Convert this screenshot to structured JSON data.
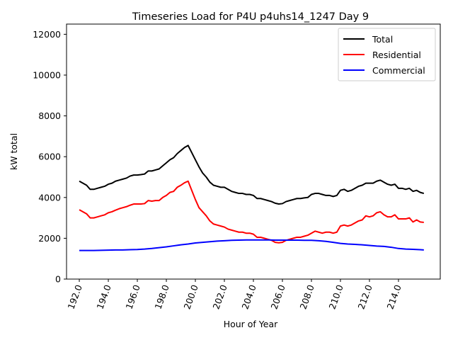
{
  "chart_data": {
    "type": "line",
    "title": "Timeseries Load for P4U p4uhs14_1247  Day 9",
    "xlabel": "Hour of Year",
    "ylabel": "kW total",
    "xlim": [
      191.12,
      216.88
    ],
    "ylim": [
      0,
      12500
    ],
    "x_ticks": [
      192.0,
      194.0,
      196.0,
      198.0,
      200.0,
      202.0,
      204.0,
      206.0,
      208.0,
      210.0,
      212.0,
      214.0
    ],
    "x_tick_labels": [
      "192.0",
      "194.0",
      "196.0",
      "198.0",
      "200.0",
      "202.0",
      "204.0",
      "206.0",
      "208.0",
      "210.0",
      "212.0",
      "214.0"
    ],
    "y_ticks": [
      0,
      2000,
      4000,
      6000,
      8000,
      10000,
      12000
    ],
    "y_tick_labels": [
      "0",
      "2000",
      "4000",
      "6000",
      "8000",
      "10000",
      "12000"
    ],
    "x_tick_rotation": 70,
    "grid": false,
    "legend": "top-right",
    "series": [
      {
        "name": "Total",
        "color": "#000000",
        "x": [
          192.0,
          192.25,
          192.5,
          192.75,
          193.0,
          193.25,
          193.5,
          193.75,
          194.0,
          194.25,
          194.5,
          194.75,
          195.0,
          195.25,
          195.5,
          195.75,
          196.0,
          196.25,
          196.5,
          196.75,
          197.0,
          197.25,
          197.5,
          197.75,
          198.0,
          198.25,
          198.5,
          198.75,
          199.0,
          199.25,
          199.5,
          199.75,
          200.0,
          200.25,
          200.5,
          200.75,
          201.0,
          201.25,
          201.5,
          201.75,
          202.0,
          202.25,
          202.5,
          202.75,
          203.0,
          203.25,
          203.5,
          203.75,
          204.0,
          204.25,
          204.5,
          204.75,
          205.0,
          205.25,
          205.5,
          205.75,
          206.0,
          206.25,
          206.5,
          206.75,
          207.0,
          207.25,
          207.5,
          207.75,
          208.0,
          208.25,
          208.5,
          208.75,
          209.0,
          209.25,
          209.5,
          209.75,
          210.0,
          210.25,
          210.5,
          210.75,
          211.0,
          211.25,
          211.5,
          211.75,
          212.0,
          212.25,
          212.5,
          212.75,
          213.0,
          213.25,
          213.5,
          213.75,
          214.0,
          214.25,
          214.5,
          214.75,
          215.0,
          215.25,
          215.5,
          215.75
        ],
        "values": [
          4800,
          4700,
          4600,
          4400,
          4400,
          4450,
          4500,
          4550,
          4650,
          4700,
          4800,
          4850,
          4900,
          4950,
          5050,
          5100,
          5100,
          5120,
          5150,
          5300,
          5300,
          5350,
          5400,
          5550,
          5700,
          5850,
          5950,
          6150,
          6300,
          6450,
          6550,
          6200,
          5850,
          5500,
          5200,
          5000,
          4750,
          4600,
          4550,
          4500,
          4500,
          4400,
          4300,
          4250,
          4200,
          4200,
          4150,
          4150,
          4100,
          3950,
          3950,
          3900,
          3850,
          3800,
          3720,
          3680,
          3700,
          3800,
          3850,
          3900,
          3950,
          3950,
          3980,
          4000,
          4150,
          4200,
          4200,
          4150,
          4100,
          4100,
          4050,
          4100,
          4350,
          4400,
          4300,
          4350,
          4450,
          4550,
          4600,
          4700,
          4700,
          4700,
          4800,
          4850,
          4750,
          4650,
          4600,
          4650,
          4450,
          4450,
          4400,
          4450,
          4300,
          4350,
          4250,
          4200
        ]
      },
      {
        "name": "Residential",
        "color": "#ff0000",
        "x": [
          192.0,
          192.25,
          192.5,
          192.75,
          193.0,
          193.25,
          193.5,
          193.75,
          194.0,
          194.25,
          194.5,
          194.75,
          195.0,
          195.25,
          195.5,
          195.75,
          196.0,
          196.25,
          196.5,
          196.75,
          197.0,
          197.25,
          197.5,
          197.75,
          198.0,
          198.25,
          198.5,
          198.75,
          199.0,
          199.25,
          199.5,
          199.75,
          200.0,
          200.25,
          200.5,
          200.75,
          201.0,
          201.25,
          201.5,
          201.75,
          202.0,
          202.25,
          202.5,
          202.75,
          203.0,
          203.25,
          203.5,
          203.75,
          204.0,
          204.25,
          204.5,
          204.75,
          205.0,
          205.25,
          205.5,
          205.75,
          206.0,
          206.25,
          206.5,
          206.75,
          207.0,
          207.25,
          207.5,
          207.75,
          208.0,
          208.25,
          208.5,
          208.75,
          209.0,
          209.25,
          209.5,
          209.75,
          210.0,
          210.25,
          210.5,
          210.75,
          211.0,
          211.25,
          211.5,
          211.75,
          212.0,
          212.25,
          212.5,
          212.75,
          213.0,
          213.25,
          213.5,
          213.75,
          214.0,
          214.25,
          214.5,
          214.75,
          215.0,
          215.25,
          215.5,
          215.75
        ],
        "values": [
          3400,
          3300,
          3200,
          3000,
          3000,
          3050,
          3100,
          3150,
          3250,
          3300,
          3380,
          3450,
          3500,
          3550,
          3620,
          3680,
          3680,
          3680,
          3700,
          3850,
          3820,
          3850,
          3850,
          4000,
          4100,
          4250,
          4300,
          4500,
          4600,
          4720,
          4800,
          4350,
          3900,
          3500,
          3300,
          3100,
          2850,
          2700,
          2650,
          2600,
          2550,
          2450,
          2400,
          2350,
          2300,
          2300,
          2250,
          2250,
          2200,
          2050,
          2050,
          2000,
          1950,
          1900,
          1800,
          1780,
          1800,
          1900,
          1950,
          2000,
          2050,
          2050,
          2100,
          2150,
          2250,
          2350,
          2300,
          2250,
          2300,
          2300,
          2250,
          2300,
          2600,
          2650,
          2600,
          2650,
          2750,
          2850,
          2900,
          3100,
          3050,
          3100,
          3250,
          3300,
          3150,
          3050,
          3050,
          3150,
          2950,
          2950,
          2950,
          3000,
          2800,
          2900,
          2800,
          2780
        ]
      },
      {
        "name": "Commercial",
        "color": "#0000ff",
        "x": [
          192.0,
          192.5,
          193.0,
          193.5,
          194.0,
          194.5,
          195.0,
          195.5,
          196.0,
          196.5,
          197.0,
          197.5,
          198.0,
          198.5,
          199.0,
          199.5,
          200.0,
          200.5,
          201.0,
          201.5,
          202.0,
          202.5,
          203.0,
          203.5,
          204.0,
          204.5,
          205.0,
          205.5,
          206.0,
          206.5,
          207.0,
          207.5,
          208.0,
          208.5,
          209.0,
          209.5,
          210.0,
          210.5,
          211.0,
          211.5,
          212.0,
          212.5,
          213.0,
          213.5,
          214.0,
          214.5,
          215.0,
          215.5,
          215.75
        ],
        "values": [
          1400,
          1400,
          1400,
          1410,
          1420,
          1430,
          1430,
          1440,
          1450,
          1470,
          1500,
          1540,
          1580,
          1630,
          1680,
          1720,
          1770,
          1800,
          1830,
          1860,
          1880,
          1900,
          1910,
          1920,
          1920,
          1920,
          1920,
          1910,
          1910,
          1910,
          1910,
          1900,
          1900,
          1880,
          1850,
          1800,
          1750,
          1720,
          1700,
          1680,
          1650,
          1620,
          1600,
          1560,
          1500,
          1470,
          1460,
          1440,
          1430
        ]
      }
    ]
  }
}
